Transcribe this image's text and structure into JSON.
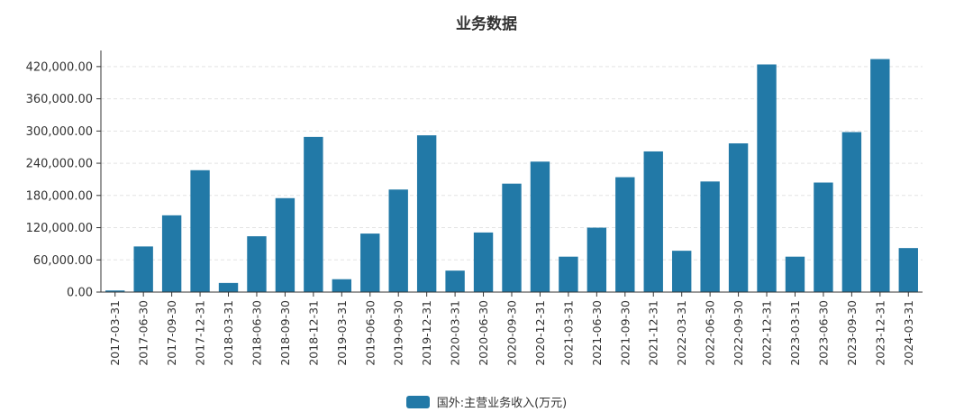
{
  "chart_data": {
    "type": "bar",
    "title": "业务数据",
    "xlabel": "",
    "ylabel": "",
    "ylim": [
      0,
      450000
    ],
    "y_ticks": [
      "0.00",
      "60,000.00",
      "120,000.00",
      "180,000.00",
      "240,000.00",
      "300,000.00",
      "360,000.00",
      "420,000.00"
    ],
    "y_tick_values": [
      0,
      60000,
      120000,
      180000,
      240000,
      300000,
      360000,
      420000
    ],
    "grid": "horizontal-dashed",
    "legend_position": "bottom-center",
    "categories": [
      "2017-03-31",
      "2017-06-30",
      "2017-09-30",
      "2017-12-31",
      "2018-03-31",
      "2018-06-30",
      "2018-09-30",
      "2018-12-31",
      "2019-03-31",
      "2019-06-30",
      "2019-09-30",
      "2019-12-31",
      "2020-03-31",
      "2020-06-30",
      "2020-09-30",
      "2020-12-31",
      "2021-03-31",
      "2021-06-30",
      "2021-09-30",
      "2021-12-31",
      "2022-03-31",
      "2022-06-30",
      "2022-09-30",
      "2022-12-31",
      "2023-03-31",
      "2023-06-30",
      "2023-09-30",
      "2023-12-31",
      "2024-03-31"
    ],
    "series": [
      {
        "name": "国外:主营业务收入(万元)",
        "color": "#2279a7",
        "values": [
          3000,
          85000,
          143000,
          227000,
          17000,
          104000,
          175000,
          289000,
          24000,
          109000,
          191000,
          292000,
          40000,
          111000,
          202000,
          243000,
          66000,
          120000,
          214000,
          262000,
          77000,
          206000,
          277000,
          424000,
          66000,
          204000,
          298000,
          434000,
          82000
        ]
      }
    ]
  }
}
